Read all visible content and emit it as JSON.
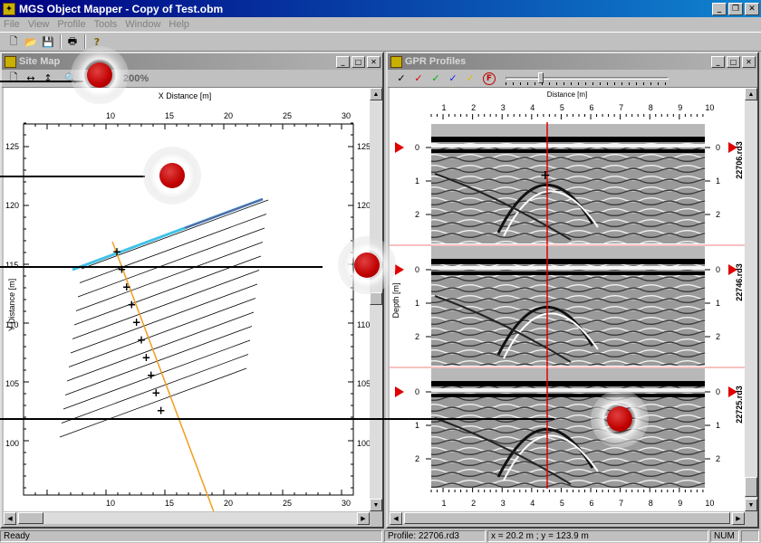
{
  "app": {
    "title": "MGS Object Mapper - Copy of Test.obm",
    "icon": "app-icon"
  },
  "menu": [
    "File",
    "View",
    "Profile",
    "Tools",
    "Window",
    "Help"
  ],
  "toolbar": [
    {
      "name": "new-file-icon",
      "glyph": "🗋"
    },
    {
      "name": "open-folder-icon",
      "glyph": "📂"
    },
    {
      "name": "save-icon",
      "glyph": "💾"
    },
    {
      "name": "print-icon",
      "glyph": "🖶"
    },
    {
      "name": "help-icon",
      "glyph": "?"
    }
  ],
  "sitemap": {
    "title": "Site Map",
    "zoom": "200%",
    "xlabel": "X Distance [m]",
    "ylabel": "Y Distance [m]",
    "xticks": [
      "10",
      "15",
      "20",
      "25",
      "30"
    ],
    "yticks": [
      "125",
      "120",
      "115",
      "110",
      "105",
      "100"
    ]
  },
  "gpr": {
    "title": "GPR Profiles",
    "xlabel": "Distance [m]",
    "ylabel": "Depth [m]",
    "xticks": [
      "1",
      "2",
      "3",
      "4",
      "5",
      "6",
      "7",
      "8",
      "9",
      "10"
    ],
    "dticks": [
      "0",
      "1",
      "2"
    ],
    "profiles": [
      "22706.rd3",
      "22746.rd3",
      "22725.rd3"
    ],
    "picks": [
      {
        "name": "pick-black-icon",
        "glyph": "✓",
        "color": "#000000"
      },
      {
        "name": "pick-red-icon",
        "glyph": "✓",
        "color": "#e00000"
      },
      {
        "name": "pick-green-icon",
        "glyph": "✓",
        "color": "#00b000"
      },
      {
        "name": "pick-blue-icon",
        "glyph": "✓",
        "color": "#2020e0"
      },
      {
        "name": "pick-yellow-icon",
        "glyph": "✓",
        "color": "#e0c000"
      }
    ],
    "filter_icon": "F"
  },
  "status": {
    "ready": "Ready",
    "profile": "Profile: 22706.rd3",
    "coords": "x = 20.2 m ; y = 123.9 m",
    "num": "NUM"
  },
  "colors": {
    "title_active": "#000080",
    "title_inactive": "#808080",
    "cursor_red": "#e00000",
    "profile_cyan": "#40c0e8",
    "profile_orange": "#f0a020"
  }
}
